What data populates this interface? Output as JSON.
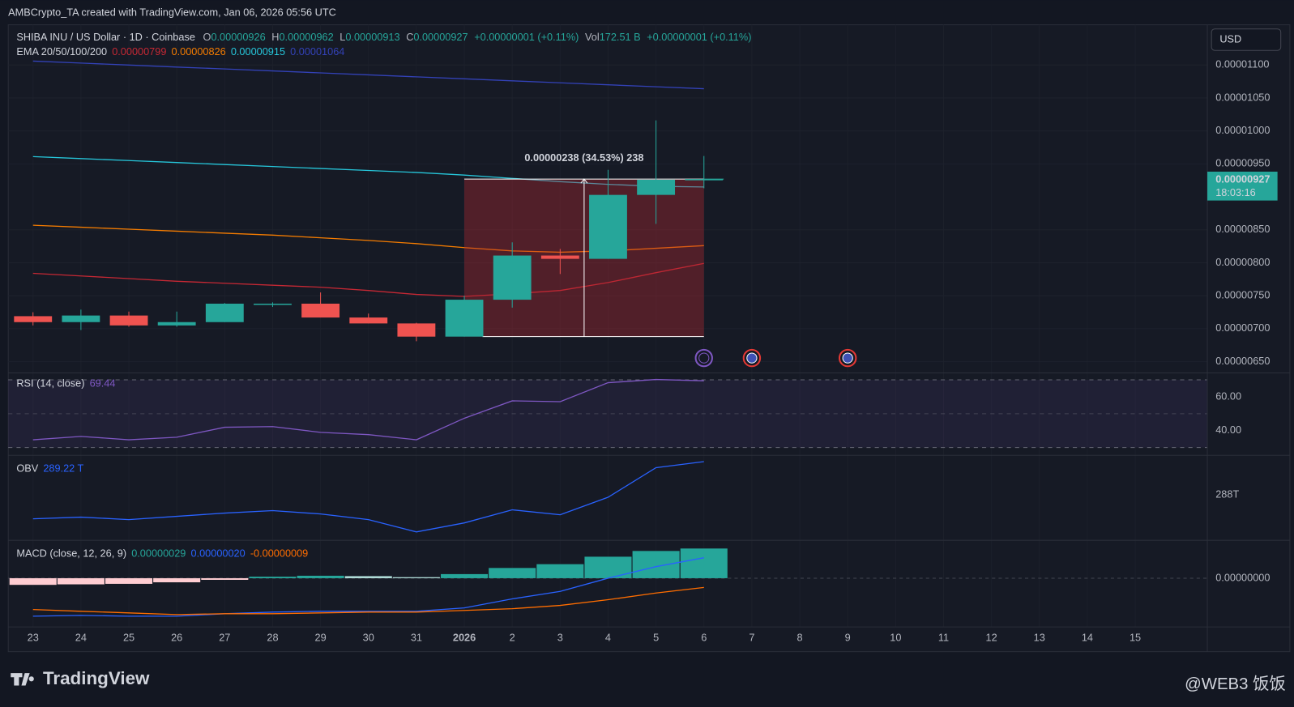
{
  "header": {
    "attribution": "AMBCrypto_TA created with TradingView.com, Jan 06, 2026 05:56 UTC",
    "symbol": "SHIBA INU / US Dollar · 1D · Coinbase",
    "ohlc_labels": [
      "O",
      "H",
      "L",
      "C"
    ],
    "ohlc_values": [
      "0.00000926",
      "0.00000962",
      "0.00000913",
      "0.00000927"
    ],
    "change": "+0.00000001 (+0.11%)",
    "vol_label": "Vol",
    "vol_value": "172.51 B",
    "vol_change": "+0.00000001 (+0.11%)",
    "currency": "USD",
    "last_price": "0.00000927",
    "countdown": "18:03:16",
    "measure": "0.00000238 (34.53%) 238",
    "logo": "TradingView",
    "watermark": "@WEB3 饭饭"
  },
  "chart_data": [
    {
      "type": "candlestick",
      "categories": [
        "23",
        "24",
        "25",
        "26",
        "27",
        "28",
        "29",
        "30",
        "31",
        "2026",
        "2",
        "3",
        "4",
        "5",
        "6",
        "7",
        "8",
        "9",
        "10",
        "11",
        "12",
        "13",
        "14",
        "15"
      ],
      "open": [
        7.19e-06,
        7.1e-06,
        7.2e-06,
        7.05e-06,
        7.1e-06,
        7.37e-06,
        7.38e-06,
        7.17e-06,
        7.08e-06,
        6.88e-06,
        7.44e-06,
        8.11e-06,
        8.06e-06,
        9.03e-06,
        9.26e-06,
        null,
        null,
        null,
        null,
        null,
        null,
        null,
        null,
        null
      ],
      "high": [
        7.25e-06,
        7.29e-06,
        7.26e-06,
        7.26e-06,
        7.39e-06,
        7.4e-06,
        7.55e-06,
        7.23e-06,
        7.09e-06,
        7.5e-06,
        8.31e-06,
        8.21e-06,
        9.41e-06,
        1.016e-05,
        9.62e-06,
        null,
        null,
        null,
        null,
        null,
        null,
        null,
        null,
        null
      ],
      "low": [
        7.05e-06,
        6.98e-06,
        7.03e-06,
        7.03e-06,
        7.1e-06,
        7.33e-06,
        7.17e-06,
        7.08e-06,
        6.81e-06,
        6.88e-06,
        7.32e-06,
        7.83e-06,
        8.06e-06,
        8.59e-06,
        9.13e-06,
        null,
        null,
        null,
        null,
        null,
        null,
        null,
        null,
        null
      ],
      "close": [
        7.1e-06,
        7.2e-06,
        7.05e-06,
        7.1e-06,
        7.38e-06,
        7.38e-06,
        7.17e-06,
        7.08e-06,
        6.88e-06,
        7.44e-06,
        8.11e-06,
        8.06e-06,
        9.03e-06,
        9.26e-06,
        9.27e-06,
        null,
        null,
        null,
        null,
        null,
        null,
        null,
        null,
        null
      ],
      "up_color": "#26a69a",
      "down_color": "#ef5350",
      "ema_title": "EMA 20/50/100/200",
      "ema": [
        {
          "color": "#c62834",
          "legend_value": "0.00000799",
          "values": [
            7.84e-06,
            7.8e-06,
            7.76e-06,
            7.72e-06,
            7.69e-06,
            7.66e-06,
            7.63e-06,
            7.58e-06,
            7.52e-06,
            7.49e-06,
            7.53e-06,
            7.58e-06,
            7.7e-06,
            7.85e-06,
            7.99e-06,
            null,
            null,
            null,
            null,
            null,
            null,
            null,
            null,
            null
          ]
        },
        {
          "color": "#f57c00",
          "legend_value": "0.00000826",
          "values": [
            8.57e-06,
            8.54e-06,
            8.51e-06,
            8.48e-06,
            8.45e-06,
            8.42e-06,
            8.38e-06,
            8.34e-06,
            8.29e-06,
            8.23e-06,
            8.18e-06,
            8.16e-06,
            8.18e-06,
            8.22e-06,
            8.26e-06,
            null,
            null,
            null,
            null,
            null,
            null,
            null,
            null,
            null
          ]
        },
        {
          "color": "#26c6da",
          "legend_value": "0.00000915",
          "values": [
            9.61e-06,
            9.58e-06,
            9.55e-06,
            9.52e-06,
            9.49e-06,
            9.46e-06,
            9.43e-06,
            9.4e-06,
            9.37e-06,
            9.33e-06,
            9.28e-06,
            9.23e-06,
            9.19e-06,
            9.16e-06,
            9.15e-06,
            null,
            null,
            null,
            null,
            null,
            null,
            null,
            null,
            null
          ]
        },
        {
          "color": "#3342b8",
          "legend_value": "0.00001064",
          "values": [
            1.106e-05,
            1.103e-05,
            1.1e-05,
            1.097e-05,
            1.094e-05,
            1.091e-05,
            1.088e-05,
            1.085e-05,
            1.082e-05,
            1.079e-05,
            1.076e-05,
            1.073e-05,
            1.07e-05,
            1.067e-05,
            1.064e-05,
            null,
            null,
            null,
            null,
            null,
            null,
            null,
            null,
            null
          ]
        }
      ],
      "ylim": [
        6.33e-06,
        1.161e-05
      ],
      "yticks": [
        {
          "value": 6.5e-06,
          "label": "0.00000650"
        },
        {
          "value": 7e-06,
          "label": "0.00000700"
        },
        {
          "value": 7.5e-06,
          "label": "0.00000750"
        },
        {
          "value": 8e-06,
          "label": "0.00000800"
        },
        {
          "value": 8.5e-06,
          "label": "0.00000850"
        },
        {
          "value": 9.5e-06,
          "label": "0.00000950"
        },
        {
          "value": 1e-05,
          "label": "0.00001000"
        },
        {
          "value": 1.05e-05,
          "label": "0.00001050"
        },
        {
          "value": 1.1e-05,
          "label": "0.00001100"
        }
      ]
    },
    {
      "type": "line",
      "title": "RSI (14, close)",
      "legend_value": "69.44",
      "color": "#7e57c2",
      "values": [
        34.6,
        36.6,
        34.6,
        36.1,
        42,
        42.4,
        39,
        37.6,
        34.6,
        47.3,
        57.6,
        57.1,
        68.3,
        70.2,
        69.44
      ],
      "upper_band": 70,
      "middle_band": 50,
      "lower_band": 30,
      "ylim": [
        25.4,
        74.1
      ],
      "yticks": [
        {
          "value": 60,
          "label": "60.00"
        },
        {
          "value": 40,
          "label": "40.00"
        }
      ]
    },
    {
      "type": "line",
      "title": "OBV",
      "legend_value": "289.22 T",
      "color": "#2962ff",
      "values": [
        287.12,
        287.18,
        287.09,
        287.21,
        287.33,
        287.42,
        287.3,
        287.09,
        286.64,
        286.97,
        287.45,
        287.27,
        287.91,
        289.0,
        289.22
      ],
      "ylim": [
        286.33,
        289.45
      ],
      "yticks": [
        {
          "value": 288,
          "label": "288T"
        }
      ]
    },
    {
      "type": "macd",
      "title": "MACD (close, 12, 26, 9)",
      "series": [
        {
          "kind": "histogram",
          "color": "#26a69a",
          "legend_value": "0.00000029",
          "colors": [
            "#ffcdd2",
            "#ffcdd2",
            "#ffcdd2",
            "#ffcdd2",
            "#ffcdd2",
            "#26a69a",
            "#26a69a",
            "#b2dfdb",
            "#b2dfdb",
            "#26a69a",
            "#26a69a",
            "#26a69a",
            "#26a69a",
            "#26a69a",
            "#26a69a"
          ],
          "values": [
            -6.5e-08,
            -6e-08,
            -5.5e-08,
            -4e-08,
            -1.6e-08,
            1.5e-08,
            2.4e-08,
            2e-08,
            1e-08,
            4e-08,
            1e-07,
            1.37e-07,
            2.1e-07,
            2.66e-07,
            2.9e-07
          ]
        },
        {
          "kind": "line",
          "color": "#2962ff",
          "legend_value": "0.00000020",
          "values": [
            -3.71e-07,
            -3.63e-07,
            -3.71e-07,
            -3.71e-07,
            -3.47e-07,
            -3.31e-07,
            -3.23e-07,
            -3.23e-07,
            -3.23e-07,
            -2.9e-07,
            -2.02e-07,
            -1.29e-07,
            0,
            1.13e-07,
            2e-07
          ]
        },
        {
          "kind": "line",
          "color": "#ff6d00",
          "legend_value": "-0.00000009",
          "values": [
            -3.06e-07,
            -3.23e-07,
            -3.39e-07,
            -3.55e-07,
            -3.47e-07,
            -3.47e-07,
            -3.39e-07,
            -3.31e-07,
            -3.31e-07,
            -3.15e-07,
            -2.98e-07,
            -2.66e-07,
            -2.1e-07,
            -1.45e-07,
            -9e-08
          ]
        }
      ],
      "ylim": [
        -4.76e-07,
        3.7e-07
      ],
      "yticks": [
        {
          "value": 0,
          "label": "0.00000000"
        }
      ]
    }
  ]
}
